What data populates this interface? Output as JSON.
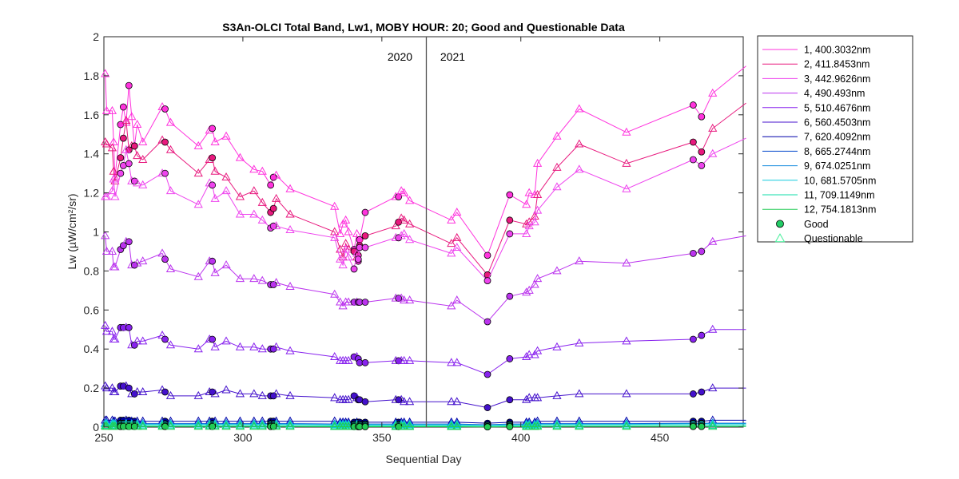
{
  "chart_data": {
    "type": "line",
    "title": "S3An-OLCI Total Band,  Lw1, MOBY HOUR: 20;  Good and Questionable Data",
    "xlabel": "Sequential Day",
    "ylabel": "Lw (µW/cm²/sr)",
    "xlim": [
      250,
      480
    ],
    "ylim": [
      0,
      2
    ],
    "xticks": [
      250,
      300,
      350,
      400,
      450
    ],
    "yticks": [
      0,
      0.2,
      0.4,
      0.6,
      0.8,
      1,
      1.2,
      1.4,
      1.6,
      1.8,
      2
    ],
    "ytick_labels": [
      "0",
      "0.2",
      "0.4",
      "0.6",
      "0.8",
      "1",
      "1.2",
      "1.4",
      "1.6",
      "1.8",
      "2"
    ],
    "grid": false,
    "legend_position": "outside-right",
    "year_divider": {
      "x": 366,
      "left_label": "2020",
      "right_label": "2021"
    },
    "x": [
      250.5,
      251,
      253,
      253.5,
      254,
      256,
      257,
      258,
      259,
      260,
      261,
      262,
      264,
      271,
      272,
      274,
      284,
      288,
      289,
      290,
      294,
      299,
      304,
      307,
      310,
      311,
      312,
      317,
      333,
      335,
      336,
      337,
      338,
      340,
      341,
      341.5,
      342,
      344,
      355,
      356,
      357,
      358,
      360,
      375,
      377,
      388,
      396,
      402,
      403,
      405,
      406,
      413,
      421,
      438,
      462,
      465,
      469,
      481
    ],
    "good_index": [
      5,
      6,
      8,
      10,
      14,
      18,
      24,
      25,
      33,
      35,
      36,
      37,
      39,
      45,
      46,
      54,
      55,
      57
    ],
    "series": [
      {
        "name": "1, 400.3032nm",
        "color": "#ff33dd",
        "values": [
          1.81,
          1.62,
          1.62,
          1.46,
          1.28,
          1.55,
          1.64,
          1.56,
          1.75,
          1.59,
          1.44,
          1.55,
          1.46,
          1.64,
          1.63,
          1.56,
          1.44,
          1.52,
          1.53,
          1.46,
          1.49,
          1.38,
          1.32,
          1.31,
          1.24,
          1.28,
          1.29,
          1.22,
          1.13,
          0.99,
          1.04,
          1.06,
          1.0,
          0.91,
          0.99,
          0.85,
          0.96,
          1.1,
          1.18,
          1.18,
          1.21,
          1.2,
          1.16,
          1.06,
          1.1,
          0.88,
          1.19,
          1.14,
          1.2,
          1.19,
          1.35,
          1.49,
          1.63,
          1.51,
          1.65,
          1.59,
          1.71,
          1.85
        ]
      },
      {
        "name": "2, 411.8453nm",
        "color": "#e8197e",
        "values": [
          1.46,
          1.45,
          1.43,
          1.31,
          1.26,
          1.38,
          1.48,
          1.57,
          1.42,
          1.44,
          1.44,
          1.39,
          1.37,
          1.47,
          1.46,
          1.42,
          1.3,
          1.37,
          1.38,
          1.31,
          1.28,
          1.18,
          1.21,
          1.15,
          1.1,
          1.12,
          1.17,
          1.09,
          1.0,
          0.91,
          0.87,
          0.94,
          0.91,
          0.9,
          0.87,
          0.88,
          0.93,
          0.98,
          1.03,
          1.05,
          1.07,
          1.06,
          1.04,
          0.94,
          0.97,
          0.78,
          1.06,
          1.04,
          1.05,
          1.08,
          1.19,
          1.33,
          1.45,
          1.35,
          1.46,
          1.41,
          1.53,
          1.66
        ]
      },
      {
        "name": "3, 442.9626nm",
        "color": "#ee44ee",
        "values": [
          1.18,
          1.18,
          1.21,
          1.27,
          1.18,
          1.3,
          1.34,
          1.42,
          1.35,
          1.26,
          1.26,
          1.25,
          1.24,
          1.3,
          1.3,
          1.21,
          1.14,
          1.25,
          1.24,
          1.17,
          1.21,
          1.09,
          1.09,
          1.06,
          1.02,
          1.03,
          1.03,
          1.01,
          0.97,
          0.86,
          0.83,
          0.91,
          0.87,
          0.81,
          0.89,
          0.86,
          0.92,
          0.92,
          0.97,
          0.97,
          0.98,
          0.99,
          0.96,
          0.89,
          0.92,
          0.75,
          0.99,
          0.99,
          1.03,
          1.05,
          1.11,
          1.23,
          1.32,
          1.22,
          1.37,
          1.34,
          1.4,
          1.48
        ]
      },
      {
        "name": "4,  490.493nm",
        "color": "#bb33ee",
        "values": [
          0.98,
          0.9,
          0.9,
          0.82,
          0.82,
          0.91,
          0.93,
          0.95,
          0.95,
          0.83,
          0.83,
          0.84,
          0.85,
          0.89,
          0.86,
          0.81,
          0.77,
          0.85,
          0.85,
          0.79,
          0.83,
          0.76,
          0.76,
          0.75,
          0.73,
          0.73,
          0.74,
          0.72,
          0.68,
          0.64,
          0.62,
          0.64,
          0.64,
          0.64,
          0.64,
          0.64,
          0.64,
          0.64,
          0.66,
          0.66,
          0.66,
          0.65,
          0.65,
          0.62,
          0.65,
          0.54,
          0.67,
          0.69,
          0.7,
          0.73,
          0.76,
          0.8,
          0.85,
          0.84,
          0.89,
          0.9,
          0.95,
          0.98
        ]
      },
      {
        "name": "5, 510.4676nm",
        "color": "#8822ee",
        "values": [
          0.52,
          0.49,
          0.49,
          0.45,
          0.45,
          0.51,
          0.51,
          0.51,
          0.51,
          0.42,
          0.42,
          0.44,
          0.44,
          0.47,
          0.45,
          0.42,
          0.4,
          0.45,
          0.45,
          0.41,
          0.44,
          0.41,
          0.41,
          0.4,
          0.4,
          0.4,
          0.41,
          0.39,
          0.36,
          0.34,
          0.34,
          0.34,
          0.34,
          0.36,
          0.36,
          0.35,
          0.33,
          0.33,
          0.34,
          0.34,
          0.34,
          0.34,
          0.34,
          0.33,
          0.33,
          0.27,
          0.35,
          0.36,
          0.37,
          0.37,
          0.39,
          0.41,
          0.43,
          0.44,
          0.45,
          0.47,
          0.5,
          0.5
        ]
      },
      {
        "name": "6, 560.4503nm",
        "color": "#4411cc",
        "values": [
          0.21,
          0.2,
          0.2,
          0.18,
          0.18,
          0.21,
          0.21,
          0.21,
          0.2,
          0.17,
          0.17,
          0.18,
          0.18,
          0.19,
          0.18,
          0.16,
          0.16,
          0.18,
          0.18,
          0.17,
          0.19,
          0.17,
          0.17,
          0.16,
          0.16,
          0.16,
          0.17,
          0.16,
          0.15,
          0.14,
          0.14,
          0.14,
          0.14,
          0.16,
          0.15,
          0.14,
          0.14,
          0.13,
          0.14,
          0.14,
          0.14,
          0.13,
          0.13,
          0.13,
          0.13,
          0.1,
          0.14,
          0.14,
          0.15,
          0.15,
          0.15,
          0.16,
          0.17,
          0.17,
          0.17,
          0.18,
          0.2,
          0.2
        ]
      },
      {
        "name": "7, 620.4092nm",
        "color": "#0000aa",
        "values": [
          0.035,
          0.035,
          0.035,
          0.03,
          0.03,
          0.035,
          0.035,
          0.035,
          0.035,
          0.03,
          0.03,
          0.03,
          0.03,
          0.03,
          0.03,
          0.03,
          0.03,
          0.03,
          0.03,
          0.03,
          0.03,
          0.03,
          0.03,
          0.03,
          0.03,
          0.03,
          0.03,
          0.03,
          0.03,
          0.025,
          0.025,
          0.025,
          0.025,
          0.025,
          0.025,
          0.025,
          0.025,
          0.025,
          0.025,
          0.025,
          0.025,
          0.025,
          0.025,
          0.025,
          0.025,
          0.02,
          0.025,
          0.025,
          0.025,
          0.025,
          0.03,
          0.03,
          0.03,
          0.03,
          0.03,
          0.03,
          0.035,
          0.035
        ]
      },
      {
        "name": "8, 665.2744nm",
        "color": "#0044cc",
        "values": [
          0.02,
          0.02,
          0.02,
          0.018,
          0.018,
          0.02,
          0.02,
          0.02,
          0.02,
          0.018,
          0.018,
          0.018,
          0.018,
          0.018,
          0.018,
          0.018,
          0.018,
          0.018,
          0.018,
          0.018,
          0.018,
          0.018,
          0.018,
          0.018,
          0.018,
          0.018,
          0.018,
          0.018,
          0.016,
          0.016,
          0.016,
          0.016,
          0.016,
          0.016,
          0.016,
          0.016,
          0.016,
          0.016,
          0.016,
          0.016,
          0.016,
          0.016,
          0.016,
          0.016,
          0.016,
          0.012,
          0.016,
          0.016,
          0.016,
          0.016,
          0.018,
          0.018,
          0.018,
          0.018,
          0.02,
          0.02,
          0.02,
          0.02
        ]
      },
      {
        "name": "9, 674.0251nm",
        "color": "#1188dd",
        "values": [
          0.018,
          0.018,
          0.018,
          0.016,
          0.016,
          0.018,
          0.018,
          0.018,
          0.018,
          0.016,
          0.016,
          0.016,
          0.016,
          0.016,
          0.016,
          0.016,
          0.016,
          0.016,
          0.016,
          0.016,
          0.016,
          0.016,
          0.016,
          0.016,
          0.016,
          0.016,
          0.016,
          0.016,
          0.014,
          0.014,
          0.014,
          0.014,
          0.014,
          0.014,
          0.014,
          0.014,
          0.014,
          0.014,
          0.014,
          0.014,
          0.014,
          0.014,
          0.014,
          0.014,
          0.014,
          0.01,
          0.014,
          0.014,
          0.014,
          0.014,
          0.016,
          0.016,
          0.016,
          0.016,
          0.018,
          0.018,
          0.018,
          0.018
        ]
      },
      {
        "name": "10, 681.5705nm",
        "color": "#11ccdd",
        "values": [
          0.016,
          0.016,
          0.016,
          0.014,
          0.014,
          0.016,
          0.016,
          0.016,
          0.016,
          0.014,
          0.014,
          0.014,
          0.014,
          0.014,
          0.014,
          0.014,
          0.014,
          0.014,
          0.014,
          0.014,
          0.014,
          0.014,
          0.014,
          0.014,
          0.014,
          0.014,
          0.014,
          0.014,
          0.012,
          0.012,
          0.012,
          0.012,
          0.012,
          0.012,
          0.012,
          0.012,
          0.012,
          0.012,
          0.012,
          0.012,
          0.012,
          0.012,
          0.012,
          0.012,
          0.012,
          0.009,
          0.012,
          0.012,
          0.012,
          0.012,
          0.014,
          0.014,
          0.014,
          0.014,
          0.016,
          0.016,
          0.016,
          0.016
        ]
      },
      {
        "name": "11, 709.1149nm",
        "color": "#11ddaa",
        "values": [
          0.008,
          0.008,
          0.008,
          0.007,
          0.007,
          0.008,
          0.008,
          0.008,
          0.008,
          0.007,
          0.007,
          0.007,
          0.007,
          0.007,
          0.007,
          0.007,
          0.007,
          0.007,
          0.007,
          0.007,
          0.007,
          0.007,
          0.007,
          0.007,
          0.007,
          0.007,
          0.007,
          0.007,
          0.006,
          0.006,
          0.006,
          0.006,
          0.006,
          0.006,
          0.006,
          0.006,
          0.006,
          0.006,
          0.006,
          0.006,
          0.006,
          0.006,
          0.006,
          0.006,
          0.006,
          0.004,
          0.006,
          0.006,
          0.006,
          0.006,
          0.007,
          0.007,
          0.007,
          0.007,
          0.008,
          0.008,
          0.008,
          0.008
        ]
      },
      {
        "name": "12, 754.1813nm",
        "color": "#22cc55",
        "values": [
          0.003,
          0.003,
          0.003,
          0.003,
          0.003,
          0.003,
          0.003,
          0.003,
          0.003,
          0.003,
          0.003,
          0.003,
          0.003,
          0.003,
          0.003,
          0.003,
          0.003,
          0.003,
          0.003,
          0.003,
          0.003,
          0.003,
          0.003,
          0.003,
          0.003,
          0.003,
          0.003,
          0.003,
          0.002,
          0.002,
          0.002,
          0.002,
          0.002,
          0.002,
          0.002,
          0.002,
          0.002,
          0.002,
          0.002,
          0.002,
          0.002,
          0.002,
          0.002,
          0.002,
          0.002,
          0.001,
          0.002,
          0.002,
          0.002,
          0.002,
          0.003,
          0.003,
          0.003,
          0.003,
          0.003,
          0.003,
          0.003,
          0.003
        ]
      }
    ],
    "marker_legend": [
      {
        "name": "Good",
        "marker": "circle",
        "color": "#22cc66"
      },
      {
        "name": "Questionable",
        "marker": "triangle",
        "color": "#44ee99"
      }
    ]
  }
}
